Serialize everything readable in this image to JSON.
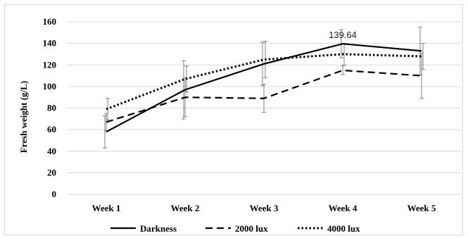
{
  "chart_data": {
    "type": "line",
    "title": "",
    "xlabel": "",
    "ylabel": "Fresh weight (g/L)",
    "categories": [
      "Week 1",
      "Week 2",
      "Week 3",
      "Week 4",
      "Week 5"
    ],
    "ylim": [
      0,
      160
    ],
    "yticks": [
      0,
      20,
      40,
      60,
      80,
      100,
      120,
      140,
      160
    ],
    "ytick_labels": [
      "0",
      "20",
      "40",
      "60",
      "80",
      "100",
      "120",
      "140",
      "160"
    ],
    "grid": "horizontal",
    "legend": "bottom",
    "series": [
      {
        "name": "Darkness",
        "style": "solid",
        "color": "#000000",
        "values": [
          58,
          97,
          121,
          139.64,
          133
        ],
        "error": [
          15,
          27,
          20,
          13,
          22
        ]
      },
      {
        "name": "2000 lux",
        "style": "dashed",
        "color": "#000000",
        "values": [
          67,
          90,
          89,
          115,
          110
        ],
        "error": [
          8,
          18,
          13,
          4,
          21
        ]
      },
      {
        "name": "4000 lux",
        "style": "dotted",
        "color": "#000000",
        "values": [
          79,
          107,
          125,
          130,
          128
        ],
        "error": [
          10,
          12,
          17,
          10,
          12
        ]
      }
    ],
    "annotations": [
      {
        "series": "Darkness",
        "category": "Week 4",
        "value": 139.64,
        "text": "139.64"
      }
    ]
  }
}
